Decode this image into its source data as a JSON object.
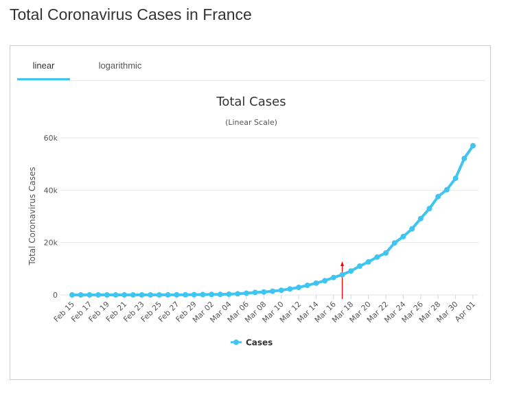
{
  "page": {
    "title": "Total Coronavirus Cases in France"
  },
  "tabs": [
    {
      "label": "linear",
      "active": true
    },
    {
      "label": "logarithmic",
      "active": false
    }
  ],
  "colors": {
    "series": "#3fc5f0",
    "marker": "#ff0000",
    "tab_active": "#3fc5f0",
    "grid": "#e6e6e6"
  },
  "chart_data": {
    "type": "line",
    "title": "Total Cases",
    "subtitle": "(Linear Scale)",
    "ylabel": "Total Coronavirus Cases",
    "xlabel": "",
    "ylim": [
      0,
      60000
    ],
    "y_ticks": [
      0,
      20000,
      40000,
      60000
    ],
    "y_tick_labels": [
      "0",
      "20k",
      "40k",
      "60k"
    ],
    "x_tick_labels": [
      "Feb 15",
      "Feb 17",
      "Feb 19",
      "Feb 21",
      "Feb 23",
      "Feb 25",
      "Feb 27",
      "Feb 29",
      "Mar 02",
      "Mar 04",
      "Mar 06",
      "Mar 08",
      "Mar 10",
      "Mar 12",
      "Mar 14",
      "Mar 16",
      "Mar 18",
      "Mar 20",
      "Mar 22",
      "Mar 24",
      "Mar 26",
      "Mar 28",
      "Mar 30",
      "Apr 01"
    ],
    "legend": {
      "position": "bottom-center"
    },
    "grid": true,
    "vertical_marker": {
      "x": "Mar 17"
    },
    "series": [
      {
        "name": "Cases",
        "x": [
          "Feb 15",
          "Feb 16",
          "Feb 17",
          "Feb 18",
          "Feb 19",
          "Feb 20",
          "Feb 21",
          "Feb 22",
          "Feb 23",
          "Feb 24",
          "Feb 25",
          "Feb 26",
          "Feb 27",
          "Feb 28",
          "Feb 29",
          "Mar 01",
          "Mar 02",
          "Mar 03",
          "Mar 04",
          "Mar 05",
          "Mar 06",
          "Mar 07",
          "Mar 08",
          "Mar 09",
          "Mar 10",
          "Mar 11",
          "Mar 12",
          "Mar 13",
          "Mar 14",
          "Mar 15",
          "Mar 16",
          "Mar 17",
          "Mar 18",
          "Mar 19",
          "Mar 20",
          "Mar 21",
          "Mar 22",
          "Mar 23",
          "Mar 24",
          "Mar 25",
          "Mar 26",
          "Mar 27",
          "Mar 28",
          "Mar 29",
          "Mar 30",
          "Mar 31",
          "Apr 01"
        ],
        "values": [
          12,
          12,
          12,
          12,
          12,
          12,
          12,
          12,
          12,
          12,
          14,
          18,
          38,
          57,
          100,
          130,
          191,
          212,
          285,
          423,
          653,
          949,
          1126,
          1412,
          1784,
          2281,
          2876,
          3661,
          4499,
          5423,
          6633,
          7730,
          9134,
          10995,
          12612,
          14459,
          16018,
          19856,
          22302,
          25233,
          29155,
          32964,
          37575,
          40174,
          44550,
          52128,
          56989
        ]
      }
    ]
  }
}
